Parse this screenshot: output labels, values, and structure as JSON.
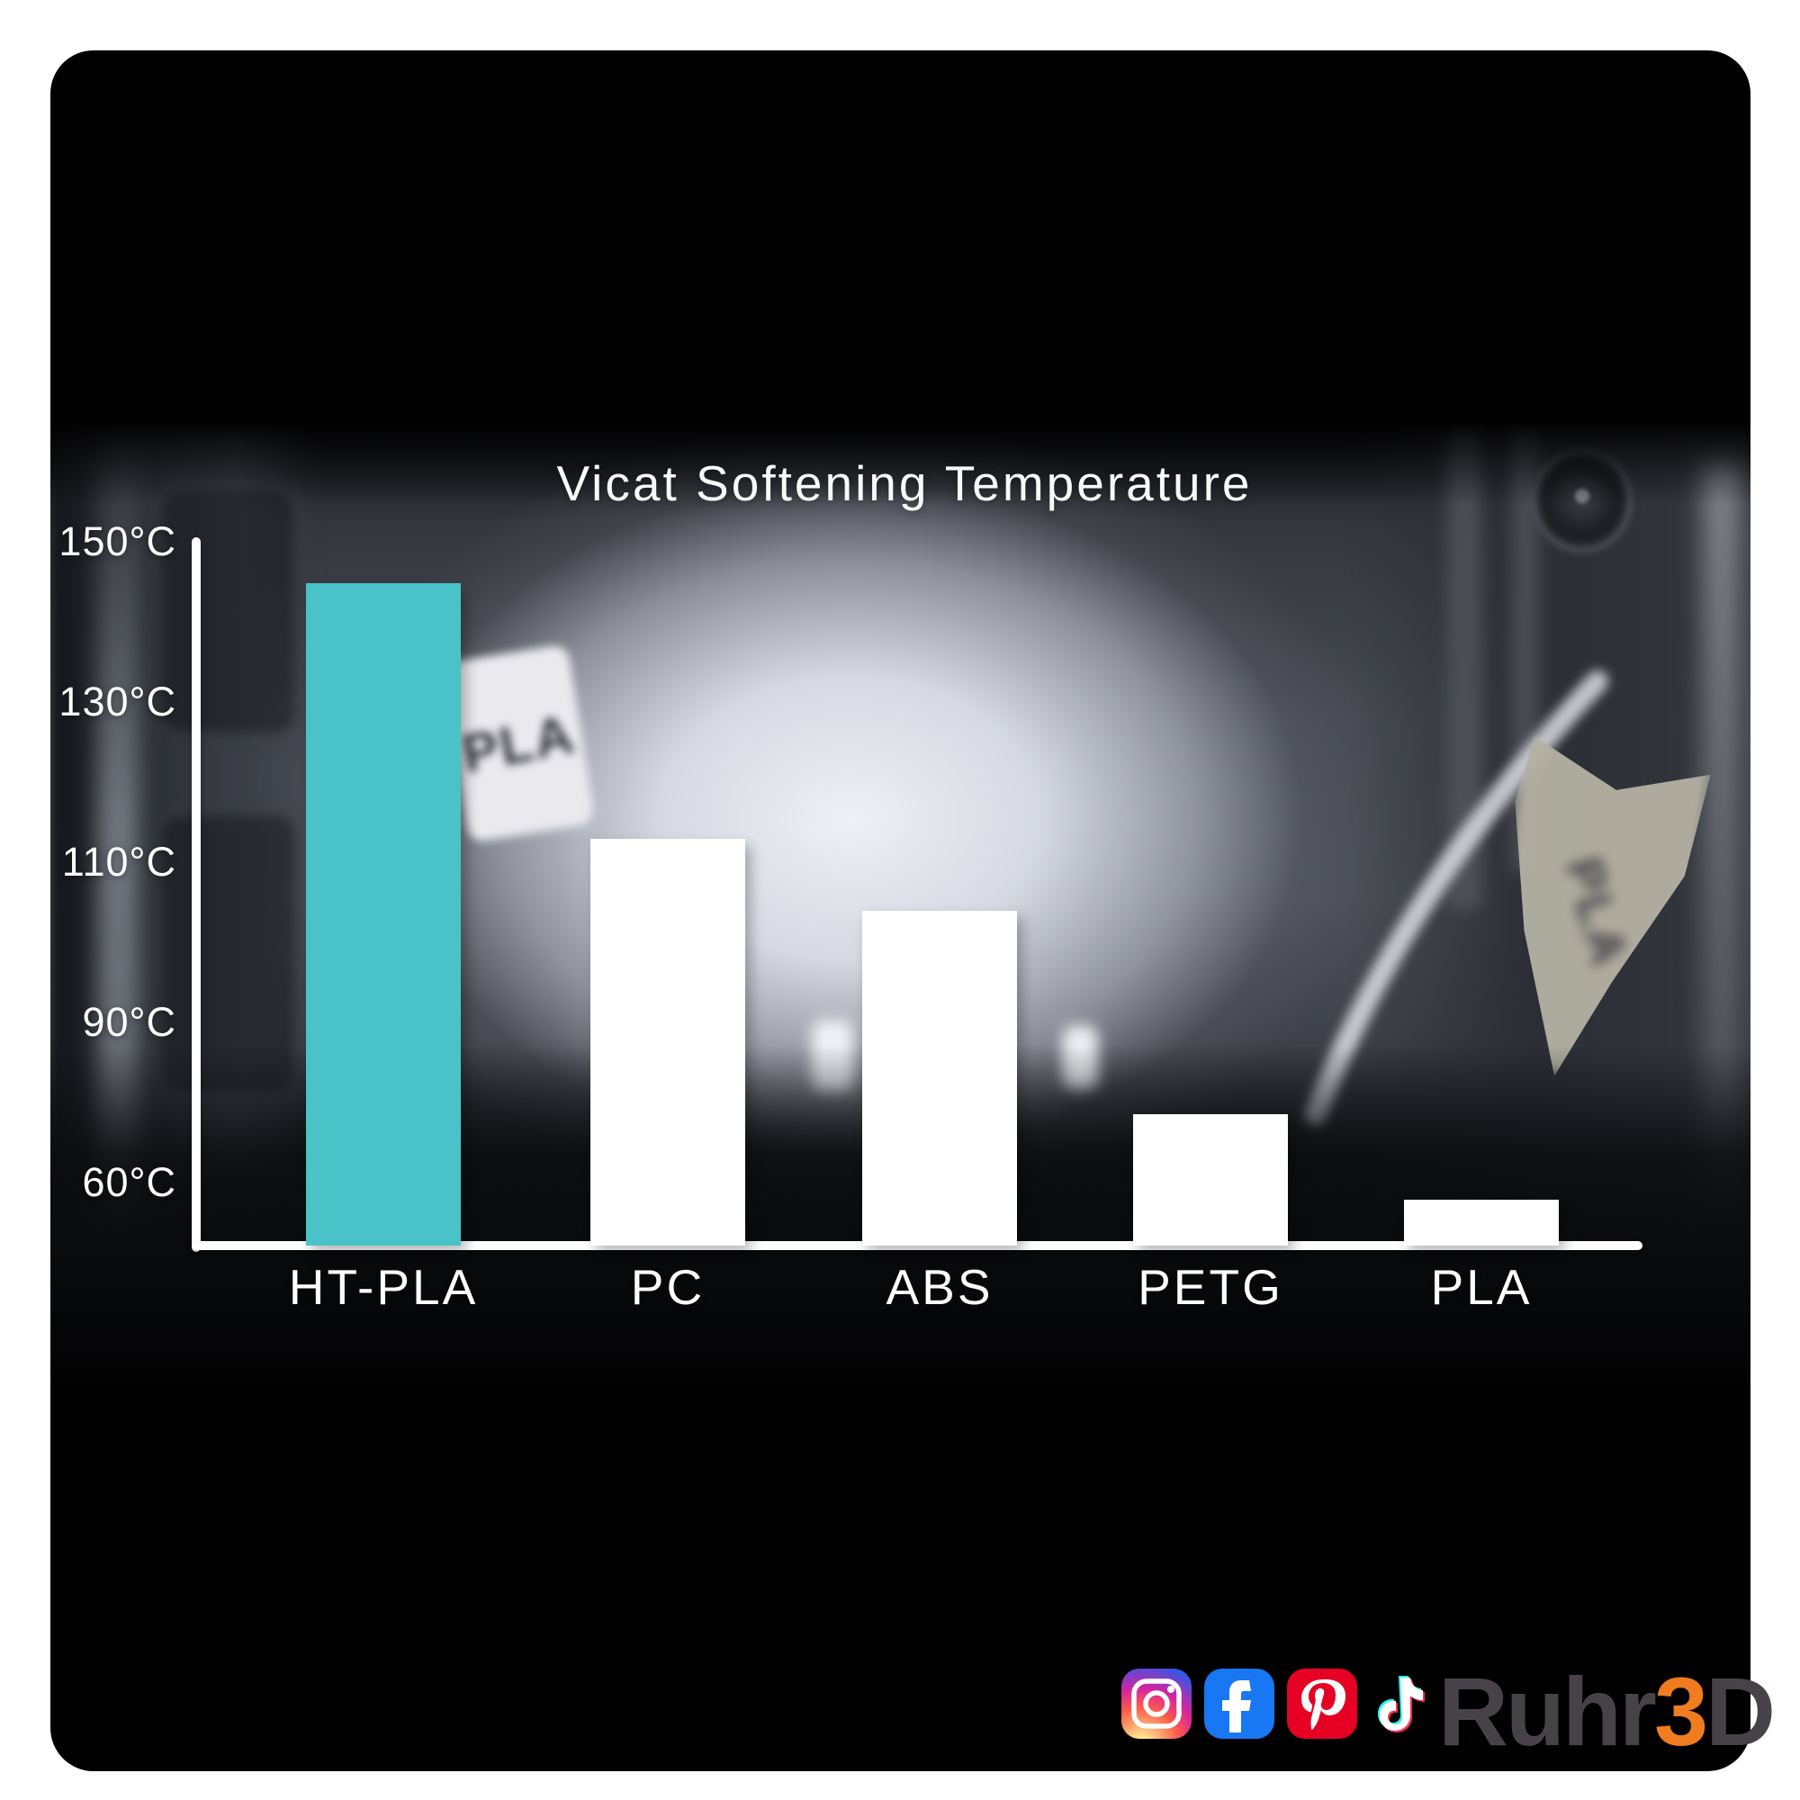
{
  "chart": {
    "title": "Vicat Softening Temperature",
    "y_ticks": [
      "150°C",
      "130°C",
      "110°C",
      "90°C",
      "60°C"
    ],
    "accent_color": "#49c3c8",
    "bar_color": "#ffffff",
    "axis_color": "#ffffff"
  },
  "chart_data": {
    "type": "bar",
    "title": "Vicat Softening Temperature",
    "categories": [
      "HT-PLA",
      "PC",
      "ABS",
      "PETG",
      "PLA"
    ],
    "values": [
      145,
      113,
      104,
      73,
      57
    ],
    "unit": "°C",
    "y_tick_values": [
      150,
      130,
      110,
      90,
      60
    ],
    "ylim": [
      50,
      150
    ],
    "grid": false,
    "legend": "none",
    "highlight_index": 0,
    "bar_colors": [
      "#49c3c8",
      "#ffffff",
      "#ffffff",
      "#ffffff",
      "#ffffff"
    ],
    "note": "y tick labels are equally spaced visually although intervals are 20,20,20,30"
  },
  "background_photo": {
    "left_tag_text": "PLA",
    "right_flag_text": "PLA"
  },
  "footer": {
    "social_icons": [
      "instagram",
      "facebook",
      "pinterest",
      "tiktok"
    ],
    "brand": {
      "prefix": "Ruhr",
      "accent": "3",
      "suffix": "D",
      "text_color": "#474248",
      "accent_color": "#ef7c1e"
    }
  }
}
